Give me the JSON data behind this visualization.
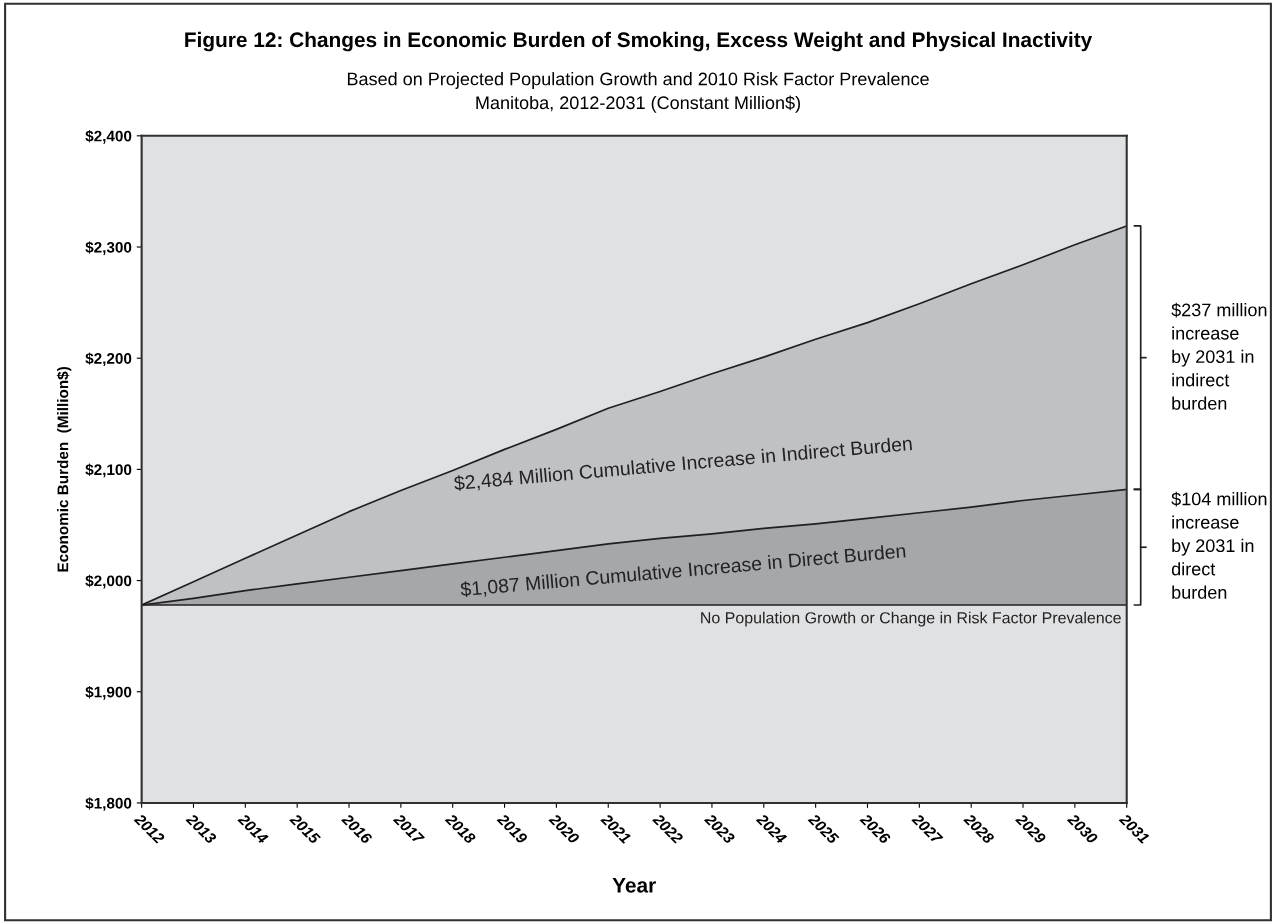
{
  "chart_data": {
    "type": "area",
    "title": "Figure 12: Changes in Economic Burden of Smoking, Excess Weight and Physical Inactivity",
    "subtitle": "Based on Projected Population Growth and 2010 Risk Factor Prevalence\nManitoba, 2012-2031 (Constant Million$)",
    "xlabel": "Year",
    "ylabel": "Economic Burden  (Million$)",
    "categories": [
      "2012",
      "2013",
      "2014",
      "2015",
      "2016",
      "2017",
      "2018",
      "2019",
      "2020",
      "2021",
      "2022",
      "2023",
      "2024",
      "2025",
      "2026",
      "2027",
      "2028",
      "2029",
      "2030",
      "2031"
    ],
    "series": [
      {
        "color": "#c0c1c4",
        "values": [
          1978,
          1999,
          2020,
          2041,
          2062,
          2081,
          2099,
          2118,
          2136,
          2155,
          2170,
          2186,
          2201,
          2217,
          2232,
          2249,
          2267,
          2284,
          2302,
          2319
        ]
      },
      {
        "color": "#a6a7aa",
        "values": [
          1978,
          1984,
          1991,
          1997,
          2003,
          2009,
          2015,
          2021,
          2027,
          2033,
          2038,
          2042,
          2047,
          2051,
          2056,
          2061,
          2066,
          2072,
          2077,
          2082
        ]
      },
      {
        "name": "No Population Growth or Change in Risk Factor Prevalence",
        "color": "#e0e1e3",
        "values": [
          1978,
          1978,
          1978,
          1978,
          1978,
          1978,
          1978,
          1978,
          1978,
          1978,
          1978,
          1978,
          1978,
          1978,
          1978,
          1978,
          1978,
          1978,
          1978,
          1978
        ]
      }
    ],
    "ylim": [
      1800,
      2400
    ],
    "yticks": [
      {
        "value": 1800,
        "label": "$1,800"
      },
      {
        "value": 1900,
        "label": "$1,900"
      },
      {
        "value": 2000,
        "label": "$2,000"
      },
      {
        "value": 2100,
        "label": "$2,100"
      },
      {
        "value": 2200,
        "label": "$2,200"
      },
      {
        "value": 2300,
        "label": "$2,300"
      },
      {
        "value": 2400,
        "label": "$2,400"
      }
    ],
    "grid": false,
    "legend": false,
    "annotations": [
      "$2,484 Million Cumulative Increase in Indirect Burden",
      "$1,087 Million Cumulative Increase in Direct Burden",
      {
        "text": "$237 million\nincrease\nby 2031 in\nindirect\nburden",
        "x": "2031",
        "y": 2200
      },
      {
        "text": "$104 million\nincrease\nby 2031 in\ndirect\nburden",
        "x": "2031",
        "y": 2030
      }
    ]
  }
}
